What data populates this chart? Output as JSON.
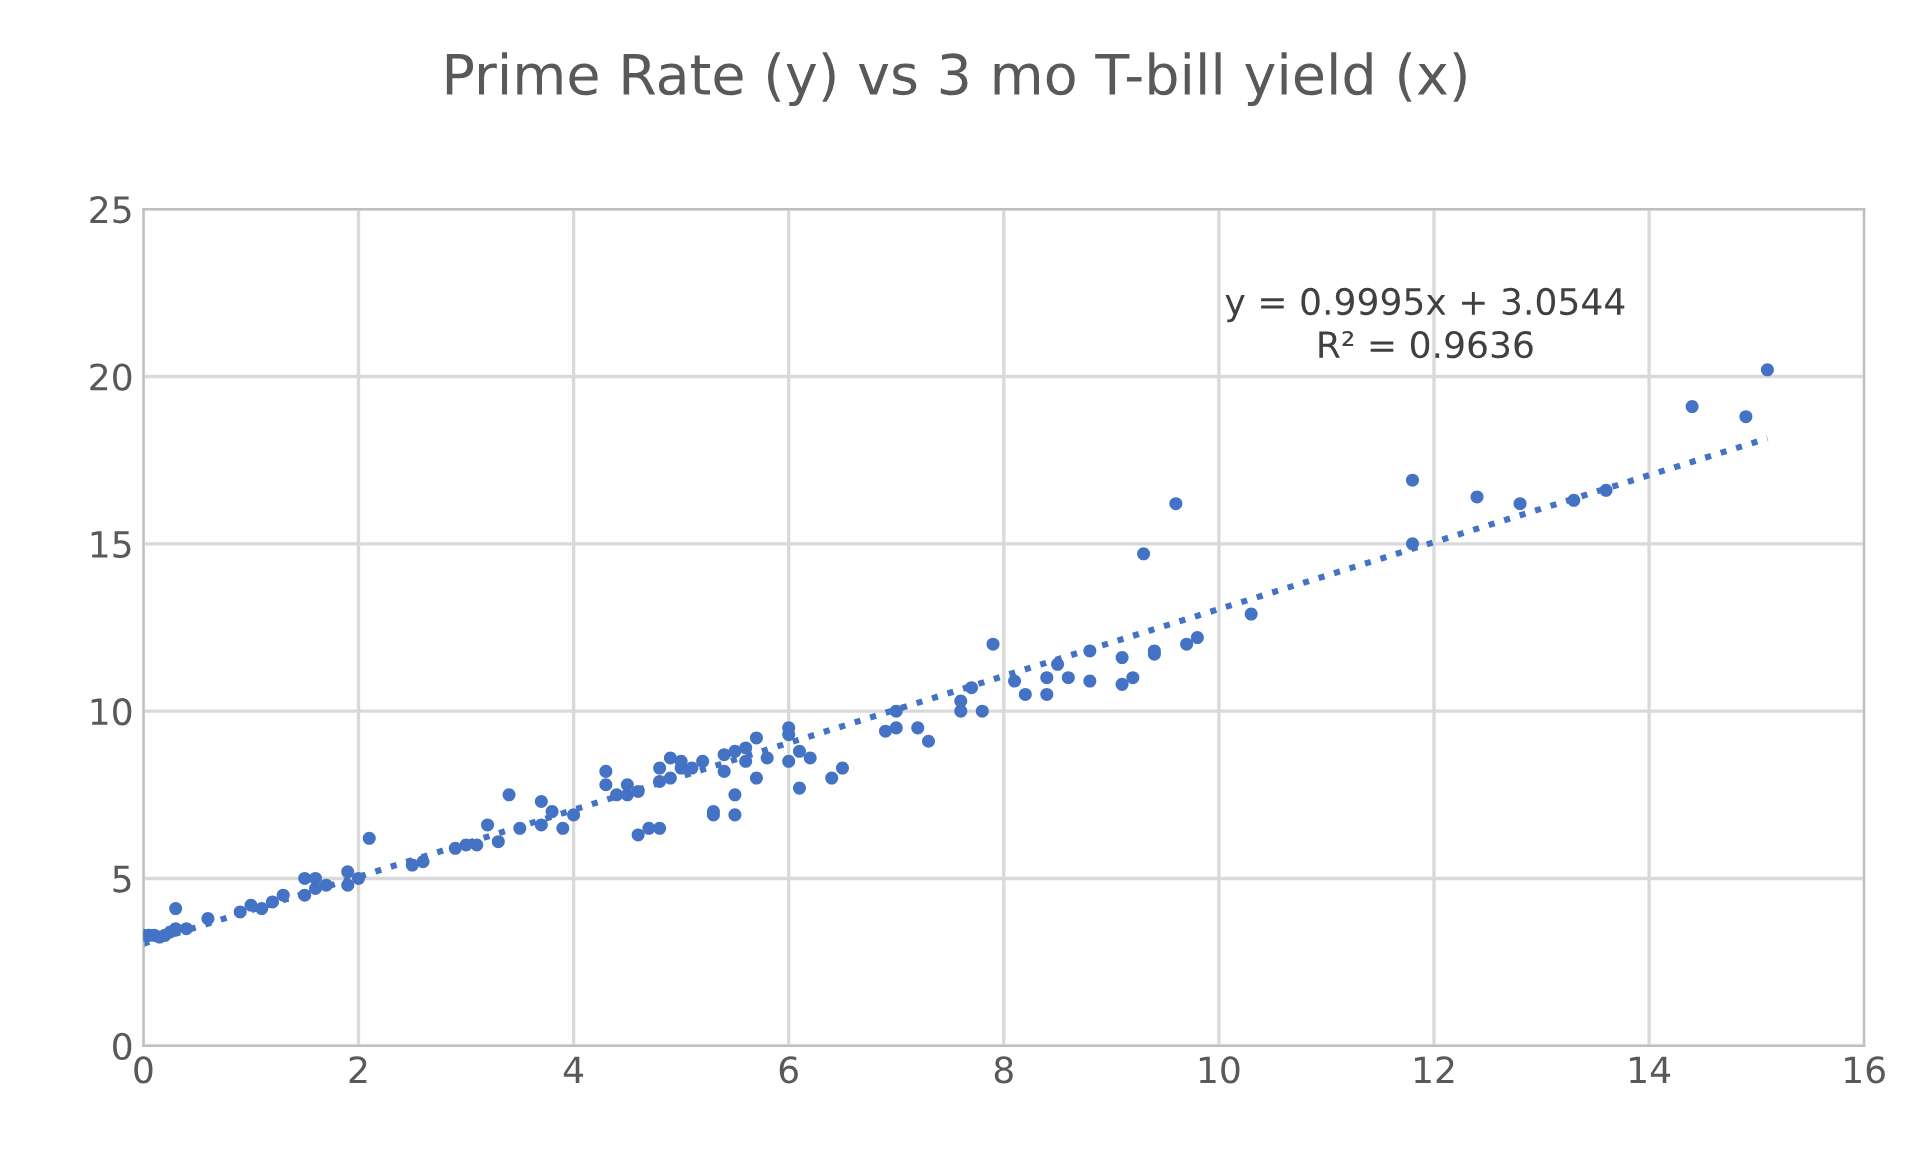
{
  "chart_data": {
    "type": "scatter",
    "title": "Prime Rate (y) vs 3 mo T-bill yield (x)",
    "xlim": [
      0,
      16
    ],
    "xticks": [
      0,
      2,
      4,
      6,
      8,
      10,
      12,
      14,
      16
    ],
    "ylim": [
      0,
      25
    ],
    "yticks": [
      0,
      5,
      10,
      15,
      20,
      25
    ],
    "grid": true,
    "marker": "circle",
    "annotations": [
      "y = 0.9995x + 3.0544",
      "R² = 0.9636"
    ],
    "series": [
      {
        "color": "#4472c4",
        "x": [
          0,
          0.05,
          0.1,
          0.15,
          0.2,
          0.25,
          0.3,
          0.3,
          0.4,
          0.6,
          0.9,
          1.0,
          1.1,
          1.2,
          1.3,
          1.5,
          1.5,
          1.6,
          1.6,
          1.7,
          1.9,
          1.9,
          2.0,
          2.1,
          2.5,
          2.6,
          2.9,
          3.0,
          3.1,
          3.2,
          3.3,
          3.4,
          3.5,
          3.7,
          3.7,
          3.8,
          3.9,
          4.0,
          4.3,
          4.3,
          4.4,
          4.5,
          4.5,
          4.6,
          4.6,
          4.7,
          4.8,
          4.8,
          4.8,
          4.9,
          4.9,
          5.0,
          5.0,
          5.1,
          5.2,
          5.3,
          5.3,
          5.4,
          5.4,
          5.5,
          5.5,
          5.5,
          5.6,
          5.6,
          5.7,
          5.7,
          5.8,
          6.0,
          6.0,
          6.0,
          6.1,
          6.1,
          6.2,
          6.4,
          6.5,
          6.9,
          7.0,
          7.0,
          7.2,
          7.3,
          7.6,
          7.6,
          7.7,
          7.8,
          7.9,
          8.1,
          8.2,
          8.4,
          8.4,
          8.5,
          8.6,
          8.8,
          8.8,
          9.1,
          9.1,
          9.2,
          9.3,
          9.4,
          9.4,
          9.6,
          9.7,
          9.8,
          10.3,
          11.8,
          11.8,
          12.4,
          12.8,
          13.3,
          13.6,
          14.4,
          14.9,
          15.1
        ],
        "values": [
          3.3,
          3.3,
          3.3,
          3.25,
          3.3,
          3.4,
          4.1,
          3.5,
          3.5,
          3.8,
          4.0,
          4.2,
          4.1,
          4.3,
          4.5,
          4.5,
          5.0,
          4.7,
          5.0,
          4.8,
          4.8,
          5.2,
          5.0,
          6.2,
          5.4,
          5.5,
          5.9,
          6.0,
          6.0,
          6.6,
          6.1,
          7.5,
          6.5,
          6.6,
          7.3,
          7.0,
          6.5,
          6.9,
          8.2,
          7.8,
          7.5,
          7.5,
          7.8,
          7.6,
          6.3,
          6.5,
          6.5,
          8.3,
          7.9,
          8.6,
          8.0,
          8.3,
          8.5,
          8.3,
          8.5,
          7.0,
          6.9,
          8.7,
          8.2,
          8.8,
          7.5,
          6.9,
          8.5,
          8.9,
          9.2,
          8.0,
          8.6,
          9.3,
          9.5,
          8.5,
          7.7,
          8.8,
          8.6,
          8.0,
          8.3,
          9.4,
          10.0,
          9.5,
          9.5,
          9.1,
          10.3,
          10.0,
          10.7,
          10.0,
          12.0,
          10.9,
          10.5,
          11.0,
          10.5,
          11.4,
          11.0,
          10.9,
          11.8,
          10.8,
          11.6,
          11.0,
          14.7,
          11.7,
          11.8,
          16.2,
          12.0,
          12.2,
          12.9,
          16.9,
          15.0,
          16.4,
          16.2,
          16.3,
          16.6,
          19.1,
          18.8,
          20.2
        ]
      },
      {
        "type": "line",
        "color": "#4472c4",
        "line_style": "dotted",
        "marker": "none",
        "x": [
          0,
          15.1
        ],
        "values": [
          3.05,
          18.15
        ]
      }
    ]
  }
}
